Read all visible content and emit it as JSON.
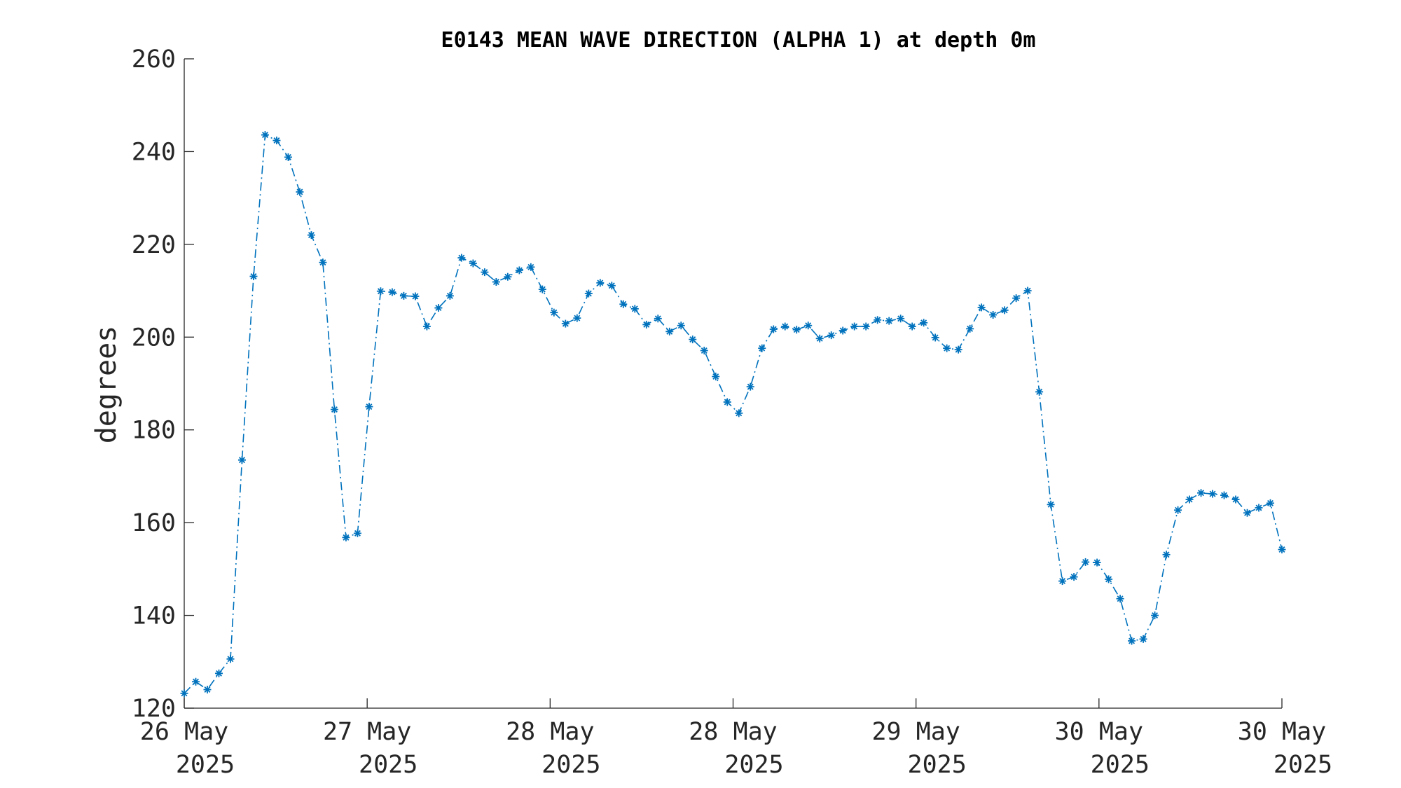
{
  "chart_data": {
    "type": "line",
    "title": "E0143 MEAN WAVE DIRECTION (ALPHA 1) at depth 0m",
    "ylabel": "degrees",
    "xlabel": "",
    "ylim": [
      120,
      260
    ],
    "yticks": [
      120,
      140,
      160,
      180,
      200,
      220,
      240,
      260
    ],
    "xlim_days": [
      0,
      6
    ],
    "xticks": [
      {
        "day": 0,
        "line1": "26 May",
        "line2": "2025"
      },
      {
        "day": 1,
        "line1": "27 May",
        "line2": "2025"
      },
      {
        "day": 2,
        "line1": "28 May",
        "line2": "2025"
      },
      {
        "day": 3,
        "line1": "28 May",
        "line2": "2025"
      },
      {
        "day": 4,
        "line1": "29 May",
        "line2": "2025"
      },
      {
        "day": 5,
        "line1": "30 May",
        "line2": "2025"
      },
      {
        "day": 6,
        "line1": "30 May",
        "line2": "2025"
      }
    ],
    "grid": false,
    "line_style": "dash-dot",
    "marker": "asterisk",
    "series": [
      {
        "color": "#0072BD",
        "y": [
          123.2,
          125.7,
          124.0,
          127.5,
          130.6,
          173.5,
          213.1,
          243.6,
          242.4,
          238.8,
          231.3,
          222.0,
          216.1,
          184.4,
          156.8,
          157.7,
          185.0,
          209.9,
          209.7,
          208.9,
          208.8,
          202.3,
          206.3,
          208.9,
          217.1,
          215.9,
          214.0,
          211.9,
          213.0,
          214.4,
          215.1,
          210.3,
          205.3,
          202.9,
          204.1,
          209.4,
          211.7,
          211.1,
          207.1,
          206.1,
          202.7,
          204.0,
          201.2,
          202.5,
          199.5,
          197.1,
          191.5,
          186.0,
          183.6,
          189.3,
          197.6,
          201.7,
          202.3,
          201.6,
          202.5,
          199.7,
          200.4,
          201.4,
          202.3,
          202.3,
          203.7,
          203.5,
          204.0,
          202.3,
          203.1,
          199.9,
          197.6,
          197.3,
          201.8,
          206.4,
          204.8,
          205.8,
          208.4,
          210.0,
          188.2,
          163.9,
          147.4,
          148.3,
          151.5,
          151.4,
          147.8,
          143.6,
          134.5,
          134.9,
          140.0,
          153.1,
          162.7,
          165.0,
          166.4,
          166.2,
          165.9,
          165.0,
          162.1,
          163.2,
          164.2,
          154.2
        ]
      }
    ]
  }
}
